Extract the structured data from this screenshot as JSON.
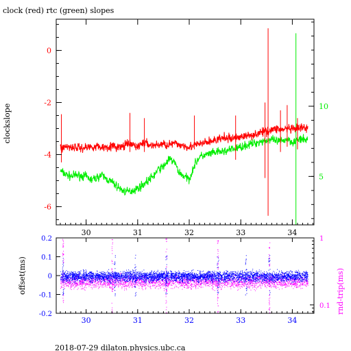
{
  "title": "clock (red) rtc (green) slopes",
  "footer": "2018-07-29  dilaton.physics.ubc.ca",
  "colors": {
    "clock": "#ff0000",
    "rtc": "#00ee00",
    "offset": "#0000ff",
    "rndtrip": "#ff00ff",
    "axis": "#000000"
  },
  "chart_data": [
    {
      "type": "line",
      "title": "clock (red) rtc (green) slopes",
      "ylabel": "clockslope",
      "xlim": [
        29.42,
        34.42
      ],
      "ylim": [
        -6.7,
        1.2
      ],
      "xticks": [
        30,
        31,
        32,
        33,
        34
      ],
      "yticks": [
        -6,
        -4,
        -2,
        0
      ],
      "y2lim": [
        1.55,
        16.2
      ],
      "y2ticks": [
        5,
        10
      ],
      "y2_color": "#00ee00",
      "grid": false,
      "series": [
        {
          "name": "clock",
          "color": "#ff0000",
          "axis": "left",
          "x": [
            29.5,
            29.6,
            29.7,
            29.8,
            29.9,
            30.0,
            30.1,
            30.2,
            30.3,
            30.4,
            30.5,
            30.6,
            30.7,
            30.8,
            30.9,
            31.0,
            31.1,
            31.2,
            31.3,
            31.4,
            31.5,
            31.6,
            31.7,
            31.8,
            31.9,
            32.0,
            32.1,
            32.2,
            32.3,
            32.4,
            32.5,
            32.6,
            32.7,
            32.8,
            32.9,
            33.0,
            33.1,
            33.2,
            33.3,
            33.4,
            33.5,
            33.6,
            33.7,
            33.8,
            33.9,
            34.0,
            34.1,
            34.2,
            34.3
          ],
          "values": [
            -3.75,
            -3.7,
            -3.7,
            -3.72,
            -3.75,
            -3.72,
            -3.7,
            -3.68,
            -3.72,
            -3.7,
            -3.68,
            -3.72,
            -3.7,
            -3.6,
            -3.62,
            -3.7,
            -3.55,
            -3.6,
            -3.65,
            -3.62,
            -3.6,
            -3.62,
            -3.58,
            -3.62,
            -3.65,
            -3.7,
            -3.65,
            -3.6,
            -3.55,
            -3.5,
            -3.45,
            -3.4,
            -3.35,
            -3.4,
            -3.35,
            -3.3,
            -3.3,
            -3.25,
            -3.2,
            -3.15,
            -3.1,
            -3.05,
            -3.0,
            -3.05,
            -3.0,
            -3.05,
            -3.0,
            -2.98,
            -3.0
          ],
          "noise": 0.14,
          "spikes": [
            {
              "x": 29.52,
              "min": -4.3,
              "max": -2.45
            },
            {
              "x": 30.85,
              "min": -3.9,
              "max": -2.4
            },
            {
              "x": 31.13,
              "min": -3.9,
              "max": -2.6
            },
            {
              "x": 32.1,
              "min": -3.8,
              "max": -2.5
            },
            {
              "x": 32.9,
              "min": -4.2,
              "max": -2.5
            },
            {
              "x": 33.47,
              "min": -4.9,
              "max": -2.0
            },
            {
              "x": 33.53,
              "min": -6.35,
              "max": 0.85
            },
            {
              "x": 33.77,
              "min": -3.9,
              "max": -2.3
            },
            {
              "x": 33.9,
              "min": -3.7,
              "max": -2.1
            },
            {
              "x": 34.1,
              "min": -3.8,
              "max": -2.6
            }
          ]
        },
        {
          "name": "rtc",
          "color": "#00ee00",
          "axis": "right",
          "x": [
            29.5,
            29.6,
            29.7,
            29.8,
            29.9,
            30.0,
            30.1,
            30.2,
            30.3,
            30.4,
            30.5,
            30.6,
            30.7,
            30.8,
            30.9,
            31.0,
            31.1,
            31.2,
            31.3,
            31.4,
            31.5,
            31.6,
            31.7,
            31.8,
            31.9,
            32.0,
            32.1,
            32.2,
            32.3,
            32.4,
            32.5,
            32.6,
            32.7,
            32.8,
            32.9,
            33.0,
            33.1,
            33.2,
            33.3,
            33.4,
            33.5,
            33.6,
            33.7,
            33.8,
            33.9,
            34.0,
            34.1,
            34.2,
            34.3
          ],
          "values": [
            5.4,
            5.15,
            5.0,
            5.1,
            5.05,
            5.0,
            4.75,
            4.9,
            5.1,
            4.8,
            4.6,
            4.3,
            4.0,
            3.9,
            4.0,
            4.15,
            4.4,
            4.7,
            5.0,
            5.5,
            5.7,
            6.2,
            6.1,
            5.3,
            5.0,
            4.8,
            5.8,
            6.4,
            6.5,
            6.6,
            6.7,
            6.75,
            6.8,
            6.9,
            7.0,
            7.1,
            7.2,
            7.3,
            7.4,
            7.5,
            7.55,
            7.6,
            7.5,
            7.5,
            7.7,
            7.45,
            7.6,
            7.6,
            7.65
          ],
          "noise": 0.25,
          "spikes": [
            {
              "x": 34.07,
              "min": 1.55,
              "max": 15.2
            }
          ]
        }
      ]
    },
    {
      "type": "scatter",
      "ylabel": "offset(ms)",
      "y2label": "rnd-trip(ms)",
      "xlim": [
        29.42,
        34.42
      ],
      "ylim": [
        -0.2,
        0.2
      ],
      "xticks": [
        30,
        31,
        32,
        33,
        34
      ],
      "yticks": [
        -0.2,
        -0.1,
        0,
        0.1,
        0.2
      ],
      "y2ticks": [
        0.1,
        1
      ],
      "y2_scale": "log",
      "y2lim": [
        0.075,
        1.0
      ],
      "grid": false,
      "series": [
        {
          "name": "offset",
          "color": "#0000ff",
          "axis": "left",
          "x_range": [
            29.5,
            34.3
          ],
          "center": 0.0,
          "spread": 0.028,
          "outlier_x": [
            29.55,
            30.55,
            30.95,
            31.55,
            32.55,
            33.1,
            33.55
          ]
        },
        {
          "name": "rnd-trip",
          "color": "#ff00ff",
          "axis": "right",
          "x_range": [
            29.5,
            34.3
          ],
          "center": 0.22,
          "spread": 0.06,
          "spike_x": [
            29.55,
            30.5,
            31.55,
            32.55,
            33.55
          ]
        }
      ]
    }
  ]
}
